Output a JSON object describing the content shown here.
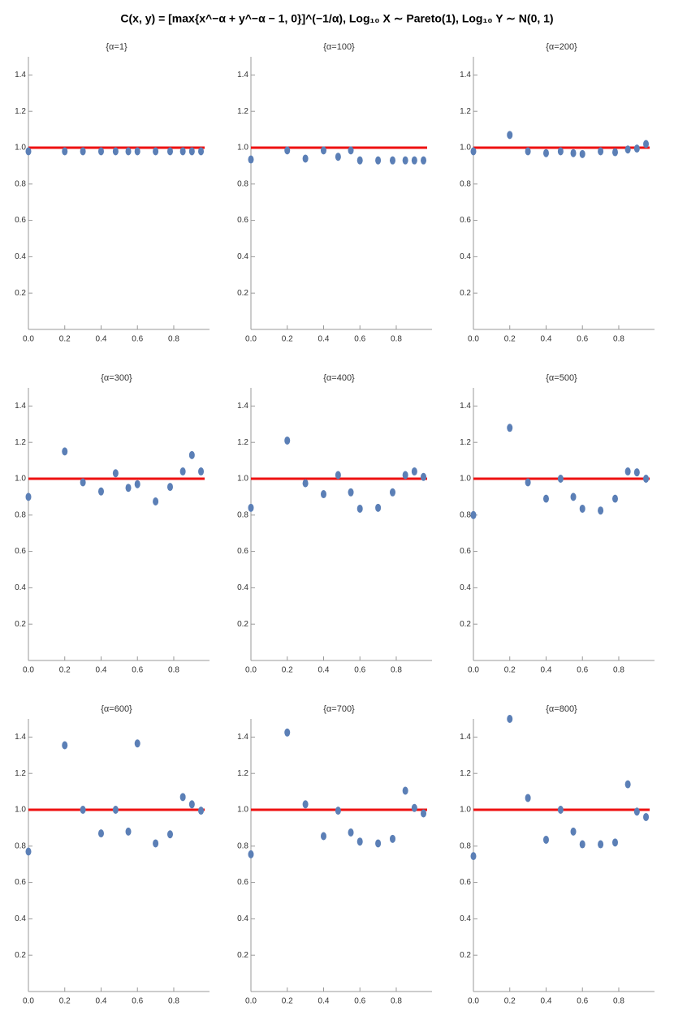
{
  "title": "C(x, y) = [max{x^−α + y^−α − 1, 0}]^(−1/α), Log₁₀ X ∼ Pareto(1), Log₁₀ Y ∼ N(0, 1)",
  "chart_data": [
    {
      "type": "scatter",
      "title": "{α=1}",
      "color": "#5b7fb6",
      "reference_line": 1,
      "reference_color": "#ee1111",
      "x": [
        0,
        0.2,
        0.3,
        0.4,
        0.48,
        0.55,
        0.6,
        0.7,
        0.78,
        0.85,
        0.9,
        0.95
      ],
      "y": [
        0.98,
        0.98,
        0.98,
        0.98,
        0.98,
        0.98,
        0.98,
        0.98,
        0.98,
        0.98,
        0.98,
        0.98
      ],
      "xlim": [
        0,
        0.97
      ],
      "ylim": [
        0,
        1.5
      ],
      "xticks": [
        {
          "value": 0,
          "label": "0.0"
        },
        0.2,
        0.4,
        0.6,
        0.8
      ],
      "yticks": [
        0.2,
        0.4,
        0.6,
        0.8,
        {
          "value": 1,
          "label": "1.0"
        },
        1.2,
        1.4
      ]
    },
    {
      "type": "scatter",
      "title": "{α=100}",
      "color": "#5b7fb6",
      "reference_line": 1,
      "reference_color": "#ee1111",
      "x": [
        0,
        0.2,
        0.3,
        0.4,
        0.48,
        0.55,
        0.6,
        0.7,
        0.78,
        0.85,
        0.9,
        0.95
      ],
      "y": [
        0.935,
        0.985,
        0.94,
        0.985,
        0.95,
        0.985,
        0.93,
        0.93,
        0.93,
        0.93,
        0.93,
        0.93
      ],
      "xlim": [
        0,
        0.97
      ],
      "ylim": [
        0,
        1.5
      ],
      "xticks": [
        {
          "value": 0,
          "label": "0.0"
        },
        0.2,
        0.4,
        0.6,
        0.8
      ],
      "yticks": [
        0.2,
        0.4,
        0.6,
        0.8,
        {
          "value": 1,
          "label": "1.0"
        },
        1.2,
        1.4
      ]
    },
    {
      "type": "scatter",
      "title": "{α=200}",
      "color": "#5b7fb6",
      "reference_line": 1,
      "reference_color": "#ee1111",
      "x": [
        0,
        0.2,
        0.3,
        0.4,
        0.48,
        0.55,
        0.6,
        0.7,
        0.78,
        0.85,
        0.9,
        0.95
      ],
      "y": [
        0.98,
        1.07,
        0.98,
        0.97,
        0.98,
        0.97,
        0.965,
        0.98,
        0.975,
        0.99,
        0.995,
        1.02
      ],
      "xlim": [
        0,
        0.97
      ],
      "ylim": [
        0,
        1.5
      ],
      "xticks": [
        {
          "value": 0,
          "label": "0.0"
        },
        0.2,
        0.4,
        0.6,
        0.8
      ],
      "yticks": [
        0.2,
        0.4,
        0.6,
        0.8,
        {
          "value": 1,
          "label": "1.0"
        },
        1.2,
        1.4
      ]
    },
    {
      "type": "scatter",
      "title": "{α=300}",
      "color": "#5b7fb6",
      "reference_line": 1,
      "reference_color": "#ee1111",
      "x": [
        0,
        0.2,
        0.3,
        0.4,
        0.48,
        0.55,
        0.6,
        0.7,
        0.78,
        0.85,
        0.9,
        0.95
      ],
      "y": [
        0.9,
        1.15,
        0.98,
        0.93,
        1.03,
        0.95,
        0.97,
        0.875,
        0.955,
        1.04,
        1.13,
        1.04
      ],
      "xlim": [
        0,
        0.97
      ],
      "ylim": [
        0,
        1.5
      ],
      "xticks": [
        {
          "value": 0,
          "label": "0.0"
        },
        0.2,
        0.4,
        0.6,
        0.8
      ],
      "yticks": [
        0.2,
        0.4,
        0.6,
        0.8,
        {
          "value": 1,
          "label": "1.0"
        },
        1.2,
        1.4
      ]
    },
    {
      "type": "scatter",
      "title": "{α=400}",
      "color": "#5b7fb6",
      "reference_line": 1,
      "reference_color": "#ee1111",
      "x": [
        0,
        0.2,
        0.3,
        0.4,
        0.48,
        0.55,
        0.6,
        0.7,
        0.78,
        0.85,
        0.9,
        0.95
      ],
      "y": [
        0.84,
        1.21,
        0.975,
        0.915,
        1.02,
        0.925,
        0.835,
        0.84,
        0.925,
        1.02,
        1.04,
        1.01
      ],
      "xlim": [
        0,
        0.97
      ],
      "ylim": [
        0,
        1.5
      ],
      "xticks": [
        {
          "value": 0,
          "label": "0.0"
        },
        0.2,
        0.4,
        0.6,
        0.8
      ],
      "yticks": [
        0.2,
        0.4,
        0.6,
        0.8,
        {
          "value": 1,
          "label": "1.0"
        },
        1.2,
        1.4
      ]
    },
    {
      "type": "scatter",
      "title": "{α=500}",
      "color": "#5b7fb6",
      "reference_line": 1,
      "reference_color": "#ee1111",
      "x": [
        0,
        0.2,
        0.3,
        0.4,
        0.48,
        0.55,
        0.6,
        0.7,
        0.78,
        0.85,
        0.9,
        0.95
      ],
      "y": [
        0.8,
        1.28,
        0.98,
        0.89,
        1.0,
        0.9,
        0.835,
        0.825,
        0.89,
        1.04,
        1.035,
        1.0
      ],
      "xlim": [
        0,
        0.97
      ],
      "ylim": [
        0,
        1.5
      ],
      "xticks": [
        {
          "value": 0,
          "label": "0.0"
        },
        0.2,
        0.4,
        0.6,
        0.8
      ],
      "yticks": [
        0.2,
        0.4,
        0.6,
        0.8,
        {
          "value": 1,
          "label": "1.0"
        },
        1.2,
        1.4
      ]
    },
    {
      "type": "scatter",
      "title": "{α=600}",
      "color": "#5b7fb6",
      "reference_line": 1,
      "reference_color": "#ee1111",
      "x": [
        0,
        0.2,
        0.3,
        0.4,
        0.48,
        0.55,
        0.6,
        0.7,
        0.78,
        0.85,
        0.9,
        0.95
      ],
      "y": [
        0.77,
        1.355,
        1.0,
        0.87,
        1.0,
        0.88,
        1.365,
        0.815,
        0.865,
        1.07,
        1.03,
        0.995
      ],
      "xlim": [
        0,
        0.97
      ],
      "ylim": [
        0,
        1.5
      ],
      "xticks": [
        {
          "value": 0,
          "label": "0.0"
        },
        0.2,
        0.4,
        0.6,
        0.8
      ],
      "yticks": [
        0.2,
        0.4,
        0.6,
        0.8,
        {
          "value": 1,
          "label": "1.0"
        },
        1.2,
        1.4
      ]
    },
    {
      "type": "scatter",
      "title": "{α=700}",
      "color": "#5b7fb6",
      "reference_line": 1,
      "reference_color": "#ee1111",
      "x": [
        0,
        0.2,
        0.3,
        0.4,
        0.48,
        0.55,
        0.6,
        0.7,
        0.78,
        0.85,
        0.9,
        0.95
      ],
      "y": [
        0.755,
        1.425,
        1.03,
        0.855,
        0.995,
        0.875,
        0.825,
        0.815,
        0.84,
        1.105,
        1.01,
        0.98
      ],
      "xlim": [
        0,
        0.97
      ],
      "ylim": [
        0,
        1.5
      ],
      "xticks": [
        {
          "value": 0,
          "label": "0.0"
        },
        0.2,
        0.4,
        0.6,
        0.8
      ],
      "yticks": [
        0.2,
        0.4,
        0.6,
        0.8,
        {
          "value": 1,
          "label": "1.0"
        },
        1.2,
        1.4
      ]
    },
    {
      "type": "scatter",
      "title": "{α=800}",
      "color": "#5b7fb6",
      "reference_line": 1,
      "reference_color": "#ee1111",
      "x": [
        0,
        0.2,
        0.3,
        0.4,
        0.48,
        0.55,
        0.6,
        0.7,
        0.78,
        0.85,
        0.9,
        0.95
      ],
      "y": [
        0.745,
        1.5,
        1.065,
        0.835,
        1.0,
        0.88,
        0.81,
        0.81,
        0.82,
        1.14,
        0.99,
        0.96
      ],
      "xlim": [
        0,
        0.97
      ],
      "ylim": [
        0,
        1.5
      ],
      "xticks": [
        {
          "value": 0,
          "label": "0.0"
        },
        0.2,
        0.4,
        0.6,
        0.8
      ],
      "yticks": [
        0.2,
        0.4,
        0.6,
        0.8,
        {
          "value": 1,
          "label": "1.0"
        },
        1.2,
        1.4
      ]
    }
  ]
}
